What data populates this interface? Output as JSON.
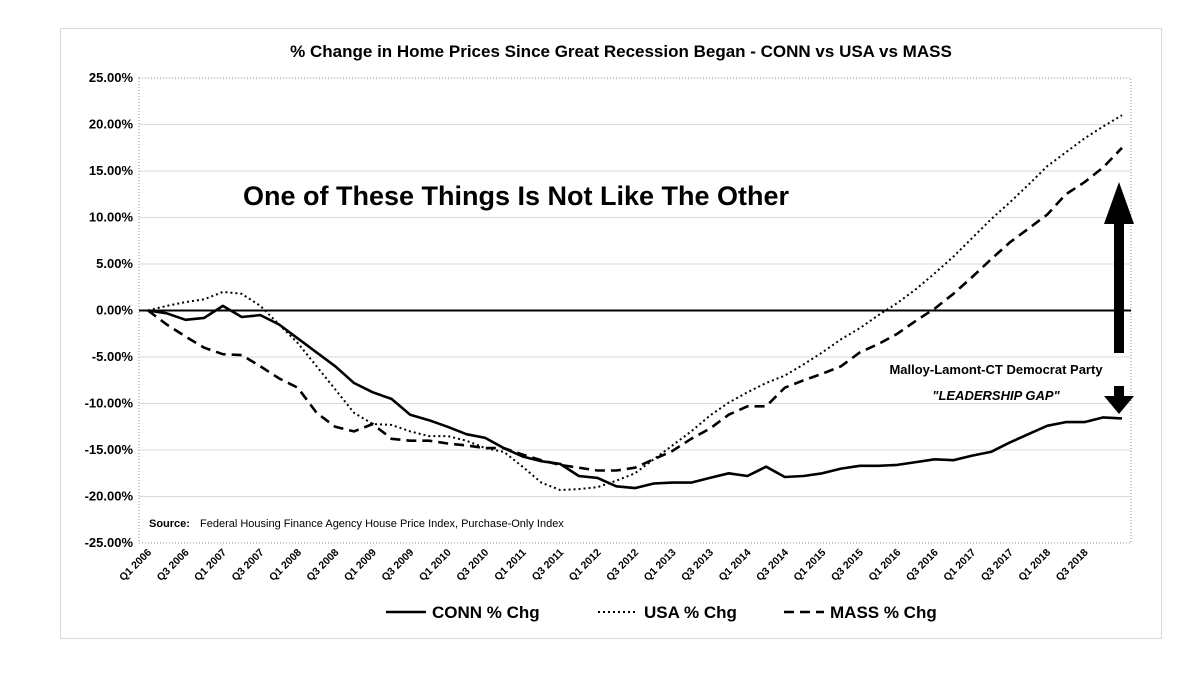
{
  "chart_data": {
    "type": "line",
    "title": "% Change in Home Prices Since Great Recession Began - CONN vs USA vs MASS",
    "xlabel": "",
    "ylabel": "",
    "ylim": [
      -25,
      25
    ],
    "y_ticks": [
      "25.00%",
      "20.00%",
      "15.00%",
      "10.00%",
      "5.00%",
      "0.00%",
      "-5.00%",
      "-10.00%",
      "-15.00%",
      "-20.00%",
      "-25.00%"
    ],
    "y_tick_values": [
      25,
      20,
      15,
      10,
      5,
      0,
      -5,
      -10,
      -15,
      -20,
      -25
    ],
    "x_tick_labels": [
      "Q1 2006",
      "Q3 2006",
      "Q1 2007",
      "Q3 2007",
      "Q1 2008",
      "Q3 2008",
      "Q1 2009",
      "Q3 2009",
      "Q1 2010",
      "Q3 2010",
      "Q1 2011",
      "Q3 2011",
      "Q1 2012",
      "Q3 2012",
      "Q1 2013",
      "Q3 2013",
      "Q1 2014",
      "Q3 2014",
      "Q1 2015",
      "Q3 2015",
      "Q1 2016",
      "Q3 2016",
      "Q1 2017",
      "Q3 2017",
      "Q1 2018",
      "Q3 2018"
    ],
    "grid": "horizontal",
    "legend_position": "bottom",
    "series": [
      {
        "name": "CONN % Chg",
        "style": "solid",
        "color": "#000000",
        "values": [
          0,
          -0.3,
          -1.0,
          -0.8,
          0.5,
          -0.7,
          -0.5,
          -1.5,
          -3.0,
          -4.5,
          -6.0,
          -7.8,
          -8.8,
          -9.5,
          -11.2,
          -11.8,
          -12.5,
          -13.3,
          -13.7,
          -14.8,
          -15.7,
          -16.2,
          -16.5,
          -17.8,
          -18.0,
          -18.9,
          -19.1,
          -18.6,
          -18.5,
          -18.5,
          -18.0,
          -17.5,
          -17.8,
          -16.8,
          -17.9,
          -17.8,
          -17.5,
          -17.0,
          -16.7,
          -16.7,
          -16.6,
          -16.3,
          -16.0,
          -16.1,
          -15.6,
          -15.2,
          -14.2,
          -13.3,
          -12.4,
          -12.0,
          -12.0,
          -11.5,
          -11.6
        ]
      },
      {
        "name": "USA % Chg",
        "style": "dotted",
        "color": "#000000",
        "values": [
          0,
          0.5,
          0.9,
          1.2,
          2.0,
          1.8,
          0.5,
          -1.5,
          -3.5,
          -6.0,
          -8.5,
          -11.0,
          -12.2,
          -12.3,
          -13.0,
          -13.5,
          -13.5,
          -14.0,
          -14.8,
          -15.2,
          -16.8,
          -18.5,
          -19.3,
          -19.2,
          -19.0,
          -18.3,
          -17.5,
          -16.0,
          -14.5,
          -13.0,
          -11.3,
          -9.9,
          -8.8,
          -7.8,
          -7.0,
          -5.8,
          -4.5,
          -3.1,
          -1.9,
          -0.5,
          0.8,
          2.3,
          4.0,
          5.8,
          7.8,
          9.8,
          11.6,
          13.5,
          15.5,
          17.0,
          18.5,
          19.8,
          21.0
        ]
      },
      {
        "name": "MASS % Chg",
        "style": "dashed",
        "color": "#000000",
        "values": [
          0,
          -1.5,
          -2.8,
          -4.0,
          -4.7,
          -4.8,
          -6.0,
          -7.3,
          -8.3,
          -11.0,
          -12.5,
          -13.0,
          -12.2,
          -13.8,
          -14.0,
          -14.0,
          -14.3,
          -14.5,
          -14.8,
          -14.8,
          -15.5,
          -16.1,
          -16.6,
          -16.9,
          -17.2,
          -17.2,
          -16.9,
          -16.0,
          -15.1,
          -13.8,
          -12.7,
          -11.2,
          -10.3,
          -10.3,
          -8.3,
          -7.5,
          -6.8,
          -6.0,
          -4.5,
          -3.6,
          -2.5,
          -1.1,
          0.2,
          1.8,
          3.6,
          5.5,
          7.3,
          8.8,
          10.3,
          12.5,
          13.8,
          15.4,
          17.5
        ]
      }
    ]
  },
  "annotations": {
    "headline": "One of These Things Is Not Like The Other",
    "gap_line1": "Malloy-Lamont-CT Democrat Party",
    "gap_line2": "\"LEADERSHIP GAP\"",
    "source_label": "Source:",
    "source_text": "Federal Housing Finance Agency House Price Index, Purchase-Only Index"
  }
}
